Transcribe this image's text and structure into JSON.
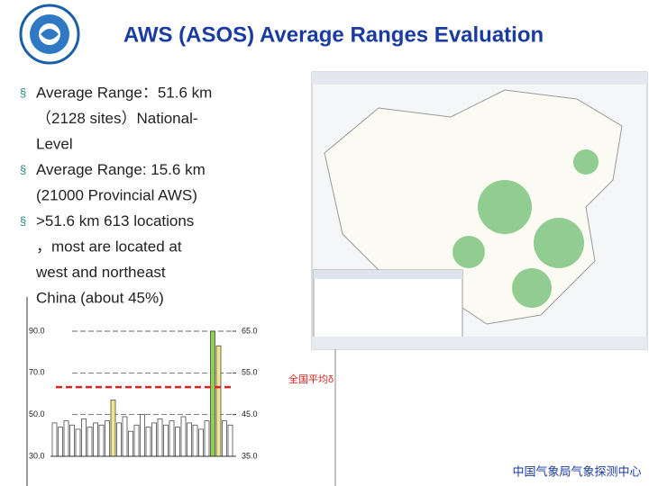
{
  "header": {
    "title": "AWS (ASOS) Average Ranges Evaluation"
  },
  "bullets": [
    {
      "lines": [
        "Average Range：51.6 km",
        "（2128 sites）National-",
        "Level"
      ]
    },
    {
      "lines": [
        "Average Range: 15.6 km",
        "(21000 Provincial AWS)"
      ]
    },
    {
      "lines": [
        ">51.6 km 613 locations",
        "，most are located at",
        "west and northeast",
        "China (about 45%)"
      ]
    }
  ],
  "chart_data": {
    "type": "bar",
    "categories": [
      null,
      null,
      null,
      null,
      null,
      null,
      null,
      null,
      null,
      null,
      null,
      null,
      null,
      null,
      null,
      null,
      null,
      null,
      null,
      null,
      null,
      null,
      null,
      null,
      null,
      null,
      null,
      null,
      null,
      null,
      null
    ],
    "values": [
      46,
      44,
      47,
      45,
      43,
      48,
      44,
      46,
      45,
      47,
      57,
      46,
      49,
      42,
      45,
      50,
      44,
      46,
      48,
      45,
      47,
      44,
      49,
      46,
      45,
      43,
      47,
      90,
      83,
      47,
      45
    ],
    "colors": [
      "#ffffff",
      "#ffffff",
      "#ffffff",
      "#ffffff",
      "#ffffff",
      "#ffffff",
      "#ffffff",
      "#ffffff",
      "#ffffff",
      "#ffffff",
      "#f0e68c",
      "#ffffff",
      "#ffffff",
      "#ffffff",
      "#ffffff",
      "#ffffff",
      "#ffffff",
      "#ffffff",
      "#ffffff",
      "#ffffff",
      "#ffffff",
      "#ffffff",
      "#ffffff",
      "#ffffff",
      "#ffffff",
      "#ffffff",
      "#ffffff",
      "#8fd14f",
      "#f0e68c",
      "#ffffff",
      "#ffffff"
    ],
    "ylim": [
      30,
      90
    ],
    "yticks": [
      {
        "value": 30,
        "label": "30.0"
      },
      {
        "value": 50,
        "label": "50.0"
      },
      {
        "value": 70,
        "label": "70.0"
      },
      {
        "value": 90,
        "label": "90.0"
      }
    ],
    "y2lim": [
      35,
      65
    ],
    "y2ticks": [
      {
        "value": 35,
        "label": "35.0"
      },
      {
        "value": 45,
        "label": "45.0"
      },
      {
        "value": 55,
        "label": "55.0"
      },
      {
        "value": 65,
        "label": "65.0"
      }
    ],
    "reference": {
      "value": 51.6,
      "axis": "y2",
      "label": "全国平均δ",
      "color": "#e02020"
    },
    "grid": true
  },
  "footer": {
    "text": "中国气象局气象探测中心"
  }
}
